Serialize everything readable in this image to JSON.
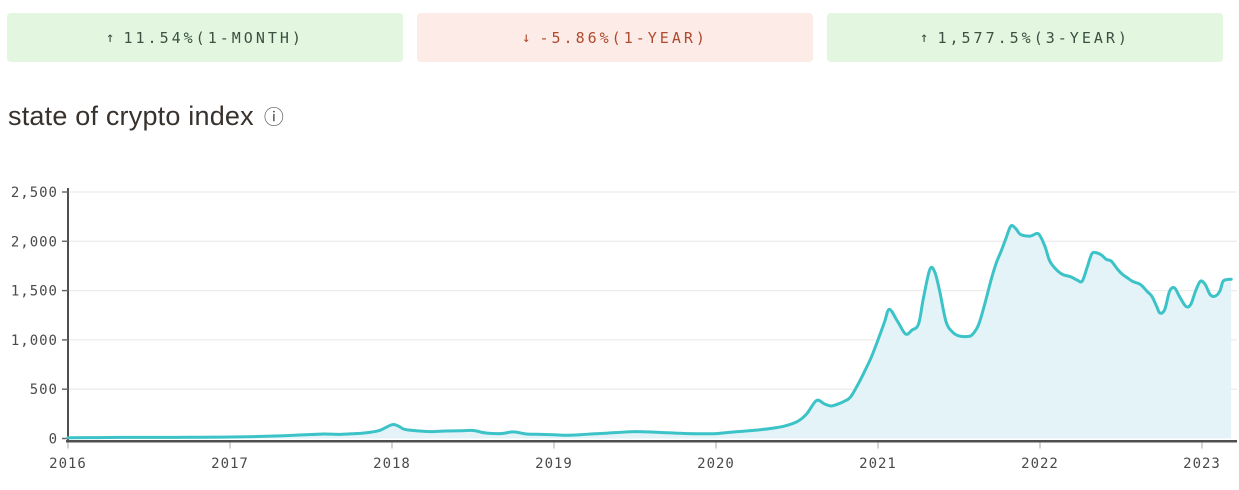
{
  "badges": [
    {
      "icon": "arrow-up-icon",
      "glyph": "↑",
      "label": "11.54%(1-MONTH)",
      "direction": "up",
      "bg": "#e3f6e0",
      "fg": "#3c5142"
    },
    {
      "icon": "arrow-down-icon",
      "glyph": "↓",
      "label": "-5.86%(1-YEAR)",
      "direction": "down",
      "bg": "#fcebe7",
      "fg": "#b04a2f"
    },
    {
      "icon": "arrow-up-icon",
      "glyph": "↑",
      "label": "1,577.5%(3-YEAR)",
      "direction": "up",
      "bg": "#e3f6e0",
      "fg": "#3c5142"
    }
  ],
  "title": "state of crypto index",
  "info_icon": {
    "name": "info-icon",
    "glyph": "ⓘ"
  },
  "chart_data": {
    "type": "area",
    "title": "state of crypto index",
    "xlabel": "",
    "ylabel": "",
    "legend": "none",
    "grid": "horizontal",
    "x_axis": {
      "range": [
        2016,
        2023.25
      ],
      "tick_labels": [
        "2016",
        "2017",
        "2018",
        "2019",
        "2020",
        "2021",
        "2022",
        "2023"
      ],
      "tick_values": [
        2016,
        2017,
        2018,
        2019,
        2020,
        2021,
        2022,
        2023
      ]
    },
    "y_axis": {
      "range": [
        0,
        2500
      ],
      "tick_labels": [
        "0",
        "500",
        "1,000",
        "1,500",
        "2,000",
        "2,500"
      ],
      "tick_values": [
        0,
        500,
        1000,
        1500,
        2000,
        2500
      ]
    },
    "colors": {
      "line": "#3cc3c8",
      "fill": "#e3f3f8",
      "grid": "#ececec",
      "axis": "#4f4f4f",
      "tick": "#c4c4c4",
      "label": "#4a4a4a"
    },
    "series": [
      {
        "name": "state of crypto index",
        "points": [
          [
            2016.0,
            8
          ],
          [
            2016.17,
            9
          ],
          [
            2016.33,
            11
          ],
          [
            2016.5,
            12
          ],
          [
            2016.67,
            12
          ],
          [
            2016.83,
            13
          ],
          [
            2017.0,
            15
          ],
          [
            2017.17,
            20
          ],
          [
            2017.33,
            28
          ],
          [
            2017.5,
            40
          ],
          [
            2017.58,
            46
          ],
          [
            2017.67,
            42
          ],
          [
            2017.75,
            48
          ],
          [
            2017.83,
            56
          ],
          [
            2017.92,
            80
          ],
          [
            2018.0,
            140
          ],
          [
            2018.04,
            125
          ],
          [
            2018.08,
            92
          ],
          [
            2018.17,
            76
          ],
          [
            2018.25,
            70
          ],
          [
            2018.33,
            76
          ],
          [
            2018.42,
            78
          ],
          [
            2018.5,
            81
          ],
          [
            2018.58,
            56
          ],
          [
            2018.67,
            50
          ],
          [
            2018.75,
            67
          ],
          [
            2018.83,
            46
          ],
          [
            2018.92,
            42
          ],
          [
            2019.0,
            38
          ],
          [
            2019.08,
            33
          ],
          [
            2019.17,
            39
          ],
          [
            2019.25,
            48
          ],
          [
            2019.33,
            54
          ],
          [
            2019.42,
            64
          ],
          [
            2019.5,
            70
          ],
          [
            2019.58,
            67
          ],
          [
            2019.67,
            60
          ],
          [
            2019.75,
            55
          ],
          [
            2019.83,
            50
          ],
          [
            2019.92,
            48
          ],
          [
            2020.0,
            50
          ],
          [
            2020.08,
            62
          ],
          [
            2020.17,
            74
          ],
          [
            2020.25,
            85
          ],
          [
            2020.33,
            100
          ],
          [
            2020.42,
            125
          ],
          [
            2020.5,
            170
          ],
          [
            2020.56,
            250
          ],
          [
            2020.62,
            385
          ],
          [
            2020.67,
            350
          ],
          [
            2020.71,
            330
          ],
          [
            2020.75,
            348
          ],
          [
            2020.79,
            376
          ],
          [
            2020.83,
            420
          ],
          [
            2020.88,
            560
          ],
          [
            2020.92,
            690
          ],
          [
            2020.96,
            830
          ],
          [
            2021.0,
            1000
          ],
          [
            2021.04,
            1180
          ],
          [
            2021.07,
            1310
          ],
          [
            2021.12,
            1190
          ],
          [
            2021.17,
            1060
          ],
          [
            2021.21,
            1100
          ],
          [
            2021.25,
            1160
          ],
          [
            2021.28,
            1420
          ],
          [
            2021.32,
            1715
          ],
          [
            2021.35,
            1690
          ],
          [
            2021.38,
            1500
          ],
          [
            2021.42,
            1185
          ],
          [
            2021.46,
            1080
          ],
          [
            2021.5,
            1040
          ],
          [
            2021.55,
            1035
          ],
          [
            2021.58,
            1050
          ],
          [
            2021.62,
            1150
          ],
          [
            2021.66,
            1370
          ],
          [
            2021.7,
            1620
          ],
          [
            2021.73,
            1780
          ],
          [
            2021.76,
            1900
          ],
          [
            2021.79,
            2030
          ],
          [
            2021.82,
            2155
          ],
          [
            2021.85,
            2130
          ],
          [
            2021.88,
            2070
          ],
          [
            2021.94,
            2053
          ],
          [
            2021.99,
            2076
          ],
          [
            2022.03,
            1950
          ],
          [
            2022.06,
            1800
          ],
          [
            2022.1,
            1714
          ],
          [
            2022.14,
            1663
          ],
          [
            2022.19,
            1640
          ],
          [
            2022.23,
            1606
          ],
          [
            2022.26,
            1595
          ],
          [
            2022.29,
            1730
          ],
          [
            2022.32,
            1873
          ],
          [
            2022.35,
            1883
          ],
          [
            2022.38,
            1860
          ],
          [
            2022.41,
            1816
          ],
          [
            2022.44,
            1799
          ],
          [
            2022.48,
            1714
          ],
          [
            2022.51,
            1663
          ],
          [
            2022.54,
            1629
          ],
          [
            2022.57,
            1595
          ],
          [
            2022.62,
            1562
          ],
          [
            2022.66,
            1494
          ],
          [
            2022.69,
            1443
          ],
          [
            2022.72,
            1341
          ],
          [
            2022.74,
            1273
          ],
          [
            2022.77,
            1308
          ],
          [
            2022.8,
            1494
          ],
          [
            2022.83,
            1528
          ],
          [
            2022.86,
            1443
          ],
          [
            2022.9,
            1341
          ],
          [
            2022.93,
            1358
          ],
          [
            2022.96,
            1494
          ],
          [
            2022.99,
            1595
          ],
          [
            2023.02,
            1562
          ],
          [
            2023.05,
            1460
          ],
          [
            2023.08,
            1443
          ],
          [
            2023.11,
            1494
          ],
          [
            2023.13,
            1595
          ],
          [
            2023.16,
            1613
          ],
          [
            2023.18,
            1615
          ]
        ]
      }
    ]
  }
}
